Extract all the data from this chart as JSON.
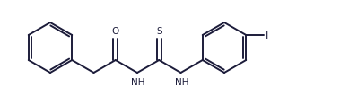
{
  "bg_color": "#ffffff",
  "line_color": "#1c1c3a",
  "line_width": 1.4,
  "figsize": [
    3.89,
    1.07
  ],
  "dpi": 100,
  "xlim": [
    0,
    389
  ],
  "ylim": [
    0,
    107
  ],
  "font_size": 7.5
}
